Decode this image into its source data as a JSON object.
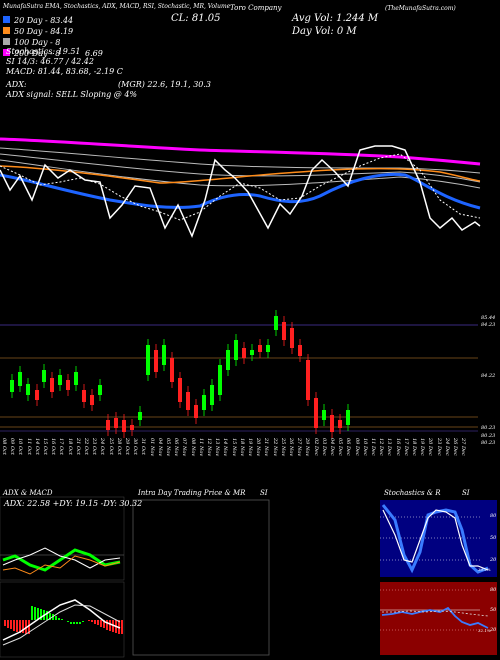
{
  "header": {
    "top_line": "MunafaSutra EMA, Stochastics, ADX, MACD, RSI, Stochastic, MR, Volume",
    "ticker": "TTC",
    "close": "CL: 81.05",
    "company": "Toro Company",
    "site": "(TheMunafaSutra.com)",
    "avg_vol": "Avg Vol: 1.244  M",
    "day_vol": "Day Vol: 0  M",
    "ema_lines": [
      "20  Day - 83.44",
      "50  Day - 84.19",
      "100  Day - 8",
      "200  Day - 8",
      "6.69"
    ],
    "stoch": "Stochastics: 19.51",
    "si": "SI  14/3: 46.77 / 42.42",
    "macd": "MACD: 81.44,  83.68,  -2.19 C",
    "adx": "ADX:",
    "adx_vals": "(MGR) 22.6,  19.1,  30.3",
    "adx_signal": "ADX  signal: SELL  Sloping @ 4%",
    "legend_colors": [
      "#1e64ff",
      "#ff8c1a",
      "#aaaaaa",
      "#ff00ff"
    ]
  },
  "price_labels": [
    "85.44",
    "84.23",
    "84.22",
    "80.23",
    "80.23",
    "80.23"
  ],
  "x_labels": [
    "08 Oct",
    "09 Oct",
    "10 Oct",
    "11 Oct",
    "14 Oct",
    "15 Oct",
    "16 Oct",
    "17 Oct",
    "18 Oct",
    "21 Oct",
    "22 Oct",
    "23 Oct",
    "24 Oct",
    "25 Oct",
    "28 Oct",
    "29 Oct",
    "30 Oct",
    "31 Oct",
    "01 Nov",
    "04 Nov",
    "05 Nov",
    "06 Nov",
    "07 Nov",
    "08 Nov",
    "11 Nov",
    "12 Nov",
    "13 Nov",
    "14 Nov",
    "15 Nov",
    "18 Nov",
    "19 Nov",
    "20 Nov",
    "21 Nov",
    "22 Nov",
    "25 Nov",
    "26 Nov",
    "27 Nov",
    "29 Nov",
    "02 Dec",
    "03 Dec",
    "04 Dec",
    "05 Dec",
    "06 Dec",
    "09 Dec",
    "10 Dec",
    "11 Dec",
    "12 Dec",
    "13 Dec",
    "16 Dec",
    "17 Dec",
    "18 Dec",
    "19 Dec",
    "20 Dec",
    "23 Dec",
    "24 Dec",
    "26 Dec",
    "27 Dec"
  ],
  "panels": {
    "adx_macd_title": "ADX  & MACD",
    "adx_readout": "ADX: 22.58  +DY: 19.15  -DY: 30.32",
    "intraday_title": "Intra Day Trading Price  & MR",
    "intraday_si": "SI",
    "stoch_title": "Stochastics & R",
    "stoch_si": "SI",
    "stoch_levels": [
      "80",
      "50",
      "20"
    ],
    "rsi_levels": [
      "80",
      "50",
      "20"
    ],
    "stoch_marker": "30.2%",
    "rsi_marker": "32.1%"
  },
  "chart_data": {
    "type": "candlestick",
    "title": "Toro Company",
    "candles": [
      [
        7,
        70,
        57
      ],
      [
        7,
        62,
        71
      ],
      [
        15,
        66,
        74
      ],
      [
        23,
        72,
        81
      ],
      [
        30,
        75,
        79
      ],
      [
        38,
        78,
        85
      ],
      [
        46,
        76,
        83
      ],
      [
        54,
        83,
        88
      ],
      [
        62,
        80,
        76
      ],
      [
        70,
        82,
        78
      ],
      [
        78,
        90,
        86
      ],
      [
        86,
        88,
        94
      ],
      [
        94,
        92,
        100
      ],
      [
        102,
        97,
        104
      ],
      [
        110,
        101,
        107
      ],
      [
        118,
        104,
        108
      ],
      [
        126,
        107,
        102
      ],
      [
        134,
        108,
        112
      ],
      [
        142,
        95,
        108
      ],
      [
        150,
        80,
        96
      ]
    ],
    "series": [
      {
        "name": "EMA 20",
        "values": [
          83.4
        ]
      },
      {
        "name": "EMA 200",
        "values": [
          86.7
        ]
      }
    ]
  }
}
